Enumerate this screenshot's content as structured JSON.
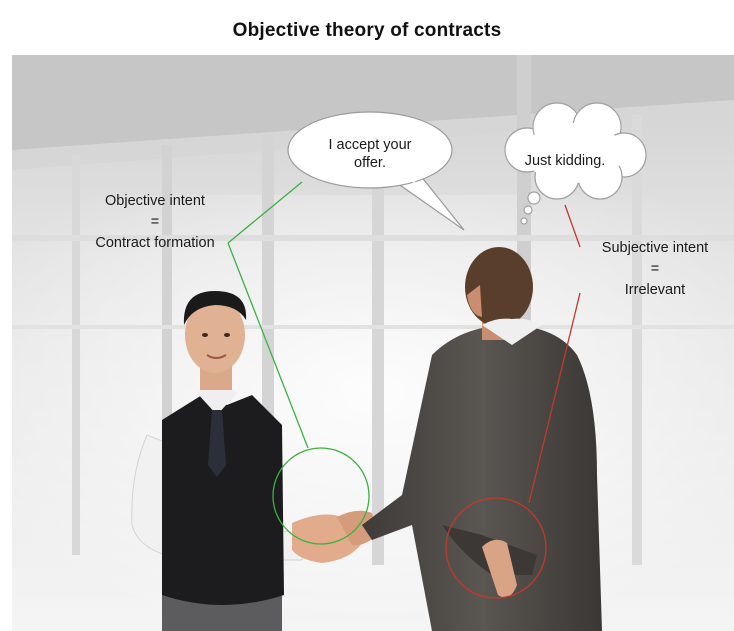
{
  "title": "Objective theory of contracts",
  "speech_bubble": {
    "lines": [
      "I accept your",
      "offer."
    ]
  },
  "thought_bubble": {
    "text": "Just kidding."
  },
  "objective_label": {
    "lines": [
      "Objective intent",
      "=",
      "Contract formation"
    ]
  },
  "subjective_label": {
    "lines": [
      "Subjective intent",
      "=",
      "Irrelevant"
    ]
  },
  "colors": {
    "objective_line": "#3cb043",
    "subjective_line": "#c0392b",
    "background": "#ececec"
  }
}
